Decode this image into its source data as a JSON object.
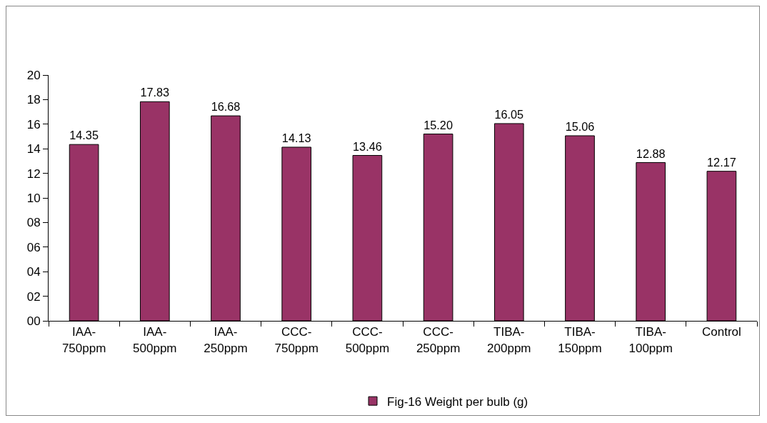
{
  "chart_data": {
    "type": "bar",
    "categories": [
      "IAA-750ppm",
      "IAA-500ppm",
      "IAA-250ppm",
      "CCC-750ppm",
      "CCC-500ppm",
      "CCC-250ppm",
      "TIBA-200ppm",
      "TIBA-150ppm",
      "TIBA-100ppm",
      "Control"
    ],
    "series": [
      {
        "name": "Fig-16 Weight per bulb (g)",
        "color": "#993366",
        "values": [
          14.35,
          17.83,
          16.68,
          14.13,
          13.46,
          15.2,
          16.05,
          15.06,
          12.88,
          12.17
        ],
        "value_labels": [
          "14.35",
          "17.83",
          "16.68",
          "14.13",
          "13.46",
          "15.20",
          "16.05",
          "15.06",
          "12.88",
          "12.17"
        ]
      }
    ],
    "ylim": [
      0,
      20
    ],
    "yticks": [
      {
        "value": 0,
        "label": "00"
      },
      {
        "value": 2,
        "label": "02"
      },
      {
        "value": 4,
        "label": "04"
      },
      {
        "value": 6,
        "label": "06"
      },
      {
        "value": 8,
        "label": "08"
      },
      10,
      12,
      14,
      16,
      18,
      20
    ],
    "grid": false,
    "legend": "bottom"
  }
}
